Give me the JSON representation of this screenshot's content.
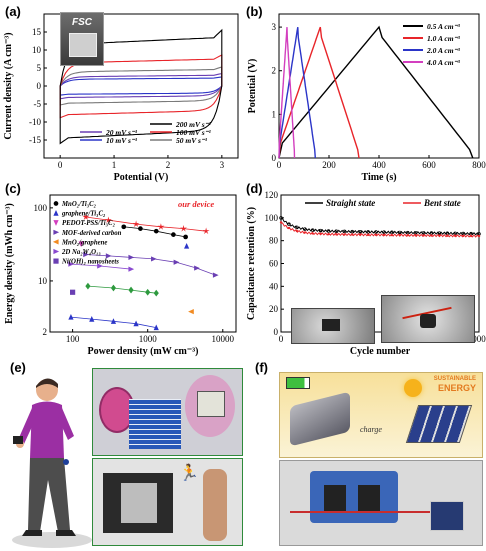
{
  "panels": {
    "a": "(a)",
    "b": "(b)",
    "c": "(c)",
    "d": "(d)",
    "e": "(e)",
    "f": "(f)"
  },
  "fsc_label": "FSC",
  "f_banner": {
    "line1": "SUSTAINABLE",
    "line2": "ENERGY"
  },
  "f_charge_label": "charge",
  "colors": {
    "black": "#000000",
    "red": "#e8252a",
    "blue": "#2b35c8",
    "violet": "#6a3fb3",
    "magenta": "#d33fbf",
    "green": "#2e9a3f",
    "orange": "#f28b22"
  },
  "chart_data": [
    {
      "id": "a",
      "type": "line",
      "xlabel": "Potential (V)",
      "ylabel": "Current density (A cm⁻³)",
      "xlim": [
        -0.3,
        3.3
      ],
      "ylim": [
        -20,
        20
      ],
      "xticks": [
        0,
        1,
        2,
        3
      ],
      "yticks": [
        -20,
        -15,
        -10,
        -5,
        0,
        5,
        10,
        15,
        20
      ],
      "ytick_labels": [
        "",
        "-15",
        "-10",
        "-5",
        "0",
        "5",
        "10",
        "15",
        ""
      ],
      "legend": "bottom-right",
      "series": [
        {
          "name": "10 mV s⁻¹",
          "color": "#2b35c8",
          "upper": 2.2,
          "lower": -2.3
        },
        {
          "name": "20 mV s⁻¹",
          "color": "#6a3fb3",
          "upper": 3.0,
          "lower": -3.2
        },
        {
          "name": "50 mV s⁻¹",
          "color": "#7a7a7a",
          "upper": 4.6,
          "lower": -4.8
        },
        {
          "name": "100 mV s⁻¹",
          "color": "#e8252a",
          "upper": 7.5,
          "lower": -8.0
        },
        {
          "name": "200 mV s⁻¹",
          "color": "#000000",
          "upper": 13.5,
          "lower": -14.5
        }
      ]
    },
    {
      "id": "b",
      "type": "line",
      "xlabel": "Time (s)",
      "ylabel": "Potential (V)",
      "xlim": [
        0,
        800
      ],
      "ylim": [
        0,
        3.3
      ],
      "xticks": [
        0,
        200,
        400,
        600,
        800
      ],
      "yticks": [
        0,
        1,
        2,
        3
      ],
      "legend": "top-right",
      "series": [
        {
          "name": "0.5 A cm⁻³",
          "color": "#000000",
          "peak_t": 400,
          "end_t": 775
        },
        {
          "name": "1.0 A cm⁻³",
          "color": "#e8252a",
          "peak_t": 165,
          "end_t": 320
        },
        {
          "name": "2.0 A cm⁻³",
          "color": "#2b35c8",
          "peak_t": 75,
          "end_t": 145
        },
        {
          "name": "4.0 A cm⁻³",
          "color": "#d33fbf",
          "peak_t": 32,
          "end_t": 62
        }
      ]
    },
    {
      "id": "c",
      "type": "scatter",
      "xlabel": "Power density (mW cm⁻³)",
      "ylabel": "Energy density (mWh cm⁻³)",
      "xscale": "log",
      "yscale": "log",
      "xlim": [
        50,
        15000
      ],
      "ylim": [
        2,
        150
      ],
      "xticks": [
        100,
        1000,
        10000
      ],
      "xtick_labels": [
        "100",
        "1000",
        "10000"
      ],
      "yticks": [
        2,
        10,
        100
      ],
      "ytick_labels": [
        "2",
        "10",
        "100"
      ],
      "annotation": "our device",
      "series": [
        {
          "name": "our device",
          "color": "#e8252a",
          "marker": "star",
          "points": [
            [
              150,
              75
            ],
            [
              300,
              68
            ],
            [
              700,
              60
            ],
            [
              1500,
              55
            ],
            [
              3000,
              52
            ],
            [
              6000,
              48
            ]
          ],
          "legend": false
        },
        {
          "name": "MnO₂/Ti₃C₂",
          "color": "#000000",
          "marker": "pent",
          "points": [
            [
              480,
              55
            ],
            [
              800,
              52
            ],
            [
              1300,
              48
            ],
            [
              2200,
              43
            ],
            [
              3200,
              40
            ]
          ]
        },
        {
          "name": "graphene/Ti₃C₂",
          "color": "#2b35c8",
          "marker": "tri",
          "points": [
            [
              3300,
              30
            ]
          ]
        },
        {
          "name": "PEDOT-PSS/Ti₃C₂",
          "color": "#d33fbf",
          "marker": "tri-down",
          "points": [
            [
              130,
              32
            ]
          ]
        },
        {
          "name": "MOF-derived carbon",
          "color": "#6a3fb3",
          "marker": "tri-right",
          "points": [
            [
              150,
              23
            ],
            [
              300,
              22
            ],
            [
              600,
              21
            ],
            [
              1200,
              20
            ],
            [
              2400,
              18
            ],
            [
              4500,
              15
            ],
            [
              8000,
              12
            ]
          ]
        },
        {
          "name": "MnO₂/graphene",
          "color": "#f28b22",
          "marker": "tri-left",
          "points": [
            [
              3800,
              3.8
            ]
          ]
        },
        {
          "name": "2D Na₂W₄O₁₃",
          "color": "#8a4ad0",
          "marker": "tri-right",
          "points": [
            [
              95,
              17
            ],
            [
              230,
              16
            ],
            [
              600,
              14.5
            ]
          ]
        },
        {
          "name": "Ni(OH)₂ nanosheets",
          "color": "#6a3fb3",
          "marker": "square",
          "points": [
            [
              100,
              7
            ]
          ]
        },
        {
          "name": "",
          "color": "#2e9a3f",
          "marker": "diamond",
          "points": [
            [
              160,
              8.5
            ],
            [
              350,
              8
            ],
            [
              600,
              7.5
            ],
            [
              1000,
              7
            ],
            [
              1300,
              6.8
            ]
          ],
          "legend": false
        },
        {
          "name": "",
          "color": "#2b35c8",
          "marker": "tri",
          "points": [
            [
              95,
              3.2
            ],
            [
              180,
              3.0
            ],
            [
              350,
              2.8
            ],
            [
              700,
              2.6
            ],
            [
              1300,
              2.3
            ]
          ],
          "legend": false
        }
      ]
    },
    {
      "id": "d",
      "type": "line",
      "xlabel": "Cycle number",
      "ylabel": "Capacitance retention (%)",
      "xlim": [
        0,
        10000
      ],
      "ylim": [
        0,
        120
      ],
      "xticks": [
        0,
        2000,
        4000,
        6000,
        8000,
        10000
      ],
      "yticks": [
        0,
        20,
        40,
        60,
        80,
        100,
        120
      ],
      "legend": "top",
      "series": [
        {
          "name": "Straight state",
          "color": "#000000",
          "start": 100,
          "plateau": 89,
          "end": 86
        },
        {
          "name": "Bent state",
          "color": "#e8252a",
          "start": 96,
          "plateau": 86,
          "end": 84
        }
      ]
    }
  ]
}
